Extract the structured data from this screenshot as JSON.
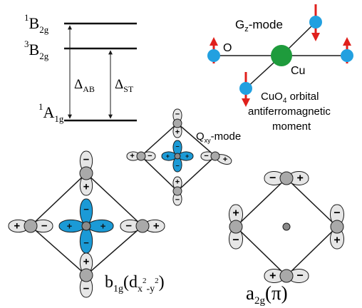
{
  "energy_diagram": {
    "levels": [
      {
        "main": "B",
        "sup": "1",
        "sub": "2g"
      },
      {
        "main": "B",
        "sup": "3",
        "sub": "2g"
      },
      {
        "main": "A",
        "sup": "1",
        "sub": "1g"
      }
    ],
    "gap_AB": {
      "main": "Δ",
      "sub": "AB"
    },
    "gap_ST": {
      "main": "Δ",
      "sub": "ST"
    }
  },
  "gz_panel": {
    "mode_main": "G",
    "mode_sub": "z",
    "mode_rest": "-mode",
    "o_label": "O",
    "cu_label": "Cu",
    "caption_line1_main": "CuO",
    "caption_line1_sub": "4",
    "caption_line1_rest": " orbital",
    "caption_line2": "antiferromagnetic",
    "caption_line3": "moment",
    "colors": {
      "cu": "#1e9b3c",
      "o": "#22a0e0",
      "arrow": "#e0201c"
    }
  },
  "qxy_panel": {
    "mode_main": "Q",
    "mode_sub": "xy",
    "mode_rest": "-mode"
  },
  "b1g_panel": {
    "label_main": "b",
    "label_sub": "1g",
    "label_open": "(d",
    "label_x": "x",
    "label_sup": "2",
    "label_mid": "-y",
    "label_sup2": "2",
    "label_close": ")"
  },
  "a2g_panel": {
    "label_main": "a",
    "label_sub": "2g",
    "label_rest": "(π)"
  },
  "signs": {
    "plus": "+",
    "minus": "−"
  },
  "colors": {
    "lobe_fill": "#e6e6e6",
    "lobe_blue": "#1b9ad6",
    "outline": "#1a1a1a"
  }
}
